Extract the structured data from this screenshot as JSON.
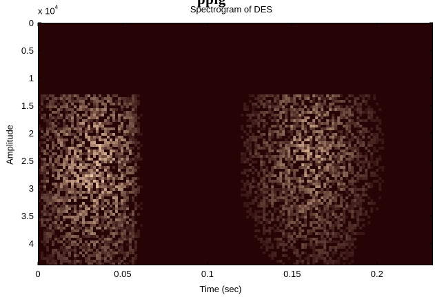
{
  "header": {
    "cut_title": "ppig"
  },
  "chart_data": {
    "type": "heatmap",
    "title": "Spectrogram of DES",
    "xlabel": "Time (sec)",
    "ylabel": "Amplitude",
    "y_multiplier": {
      "base": "x 10",
      "exponent": "4"
    },
    "x_ticks": [
      0,
      0.05,
      0.1,
      0.15,
      0.2
    ],
    "x_tick_labels": [
      "0",
      "0.05",
      "0.1",
      "0.15",
      "0.2"
    ],
    "y_ticks": [
      0,
      0.5,
      1,
      1.5,
      2,
      2.5,
      3,
      3.5,
      4
    ],
    "y_tick_labels": [
      "0",
      "0.5",
      "1",
      "1.5",
      "2",
      "2.5",
      "3",
      "3.5",
      "4"
    ],
    "xlim": [
      0,
      0.233
    ],
    "ylim": [
      0,
      4.4
    ],
    "y_reversed": true,
    "colormap": {
      "low": "#260406",
      "high": "#f0c9a6"
    },
    "grid": false,
    "energy_regions": [
      {
        "t_start": 0.0,
        "t_end": 0.062,
        "y_start": 1.3,
        "y_end": 4.4,
        "peak_t": 0.032,
        "peak_y": 2.6,
        "intensity": 0.9
      },
      {
        "t_start": 0.118,
        "t_end": 0.233,
        "y_start": 1.3,
        "y_end": 4.4,
        "peak_t": 0.16,
        "peak_y": 2.3,
        "intensity": 0.75
      }
    ]
  }
}
